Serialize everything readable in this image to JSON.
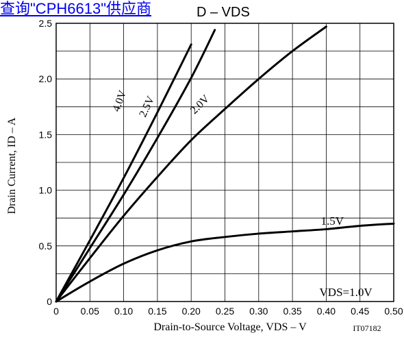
{
  "header": {
    "link_text": "查询\"CPH6613\"供应商",
    "chart_title_tail": "D – VDS"
  },
  "chart_data": {
    "type": "line",
    "title": "ID – VDS",
    "xlabel": "Drain-to-Source Voltage, VDS – V",
    "ylabel": "Drain Current, ID – A",
    "xlim": [
      0,
      0.5
    ],
    "ylim": [
      0,
      2.5
    ],
    "x_ticks": [
      "0",
      "0.05",
      "0.10",
      "0.15",
      "0.20",
      "0.25",
      "0.30",
      "0.35",
      "0.40",
      "0.45",
      "0.50"
    ],
    "y_ticks": [
      "0",
      "0.5",
      "1.0",
      "1.5",
      "2.0",
      "2.5"
    ],
    "grid": true,
    "legend": "none",
    "annotations": [
      "4.0V",
      "2.5V",
      "2.0V",
      "1.5V",
      "VDS=1.0V",
      "IT07182"
    ],
    "series": [
      {
        "name": "4.0V",
        "x": [
          0,
          0.05,
          0.1,
          0.15,
          0.2
        ],
        "y": [
          0,
          0.55,
          1.11,
          1.7,
          2.31
        ]
      },
      {
        "name": "2.5V",
        "x": [
          0,
          0.05,
          0.1,
          0.15,
          0.2,
          0.235
        ],
        "y": [
          0,
          0.48,
          0.96,
          1.47,
          2.01,
          2.44
        ]
      },
      {
        "name": "2.0V",
        "x": [
          0,
          0.05,
          0.1,
          0.15,
          0.2,
          0.25,
          0.3,
          0.35,
          0.4
        ],
        "y": [
          0,
          0.39,
          0.77,
          1.12,
          1.45,
          1.73,
          2.0,
          2.25,
          2.47
        ]
      },
      {
        "name": "1.5V",
        "x": [
          0,
          0.05,
          0.1,
          0.15,
          0.2,
          0.25,
          0.3,
          0.35,
          0.4,
          0.45,
          0.5
        ],
        "y": [
          0,
          0.18,
          0.34,
          0.46,
          0.54,
          0.58,
          0.61,
          0.63,
          0.65,
          0.68,
          0.7
        ]
      }
    ]
  }
}
